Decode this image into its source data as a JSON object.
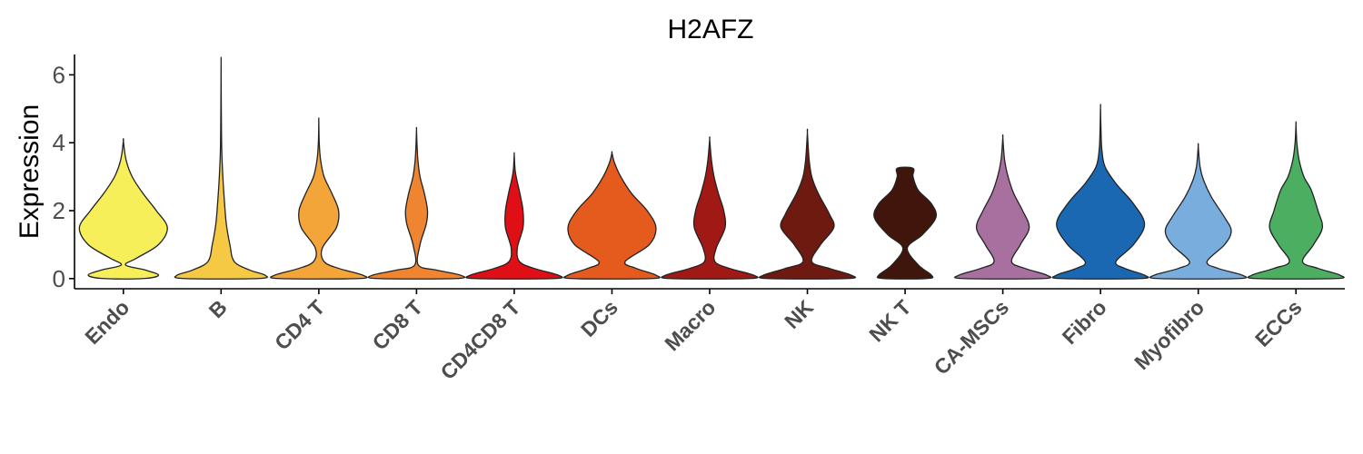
{
  "chart_data": {
    "type": "violin",
    "title": "H2AFZ",
    "xlabel": "",
    "ylabel": "Expression",
    "ylim": [
      -0.3,
      6.6
    ],
    "yticks": [
      0,
      2,
      4,
      6
    ],
    "grid": false,
    "legend": "none",
    "categories": [
      "Endo",
      "B",
      "CD4 T",
      "CD8 T",
      "CD4CD8 T",
      "DCs",
      "Macro",
      "NK",
      "NK T",
      "CA-MSCs",
      "Fibro",
      "Myofibro",
      "ECCs"
    ],
    "series": [
      {
        "category": "Endo",
        "color": "#F7EF5A",
        "min": 0,
        "max": 4.05,
        "profile": [
          [
            0,
            0.45
          ],
          [
            0.1,
            0.8
          ],
          [
            0.25,
            0.5
          ],
          [
            0.4,
            0.05
          ],
          [
            0.6,
            0.3
          ],
          [
            1.0,
            0.8
          ],
          [
            1.5,
            1.0
          ],
          [
            2.0,
            0.75
          ],
          [
            2.5,
            0.45
          ],
          [
            3.0,
            0.2
          ],
          [
            3.5,
            0.06
          ],
          [
            4.05,
            0.0
          ]
        ]
      },
      {
        "category": "B",
        "color": "#F6C945",
        "min": 0,
        "max": 6.35,
        "profile": [
          [
            0,
            0.85
          ],
          [
            0.1,
            1.0
          ],
          [
            0.25,
            0.65
          ],
          [
            0.5,
            0.3
          ],
          [
            1.0,
            0.2
          ],
          [
            1.6,
            0.12
          ],
          [
            2.2,
            0.08
          ],
          [
            3.0,
            0.04
          ],
          [
            3.8,
            0.015
          ],
          [
            5.0,
            0.005
          ],
          [
            6.35,
            0.0
          ]
        ]
      },
      {
        "category": "CD4 T",
        "color": "#F4A53A",
        "min": 0,
        "max": 4.65,
        "profile": [
          [
            0,
            0.9
          ],
          [
            0.1,
            1.0
          ],
          [
            0.3,
            0.45
          ],
          [
            0.5,
            0.12
          ],
          [
            0.9,
            0.08
          ],
          [
            1.5,
            0.4
          ],
          [
            2.0,
            0.45
          ],
          [
            2.5,
            0.3
          ],
          [
            3.0,
            0.12
          ],
          [
            3.5,
            0.04
          ],
          [
            4.0,
            0.01
          ],
          [
            4.65,
            0.0
          ]
        ]
      },
      {
        "category": "CD8 T",
        "color": "#EF8530",
        "min": 0,
        "max": 4.4,
        "profile": [
          [
            0,
            0.9
          ],
          [
            0.1,
            1.0
          ],
          [
            0.25,
            0.45
          ],
          [
            0.4,
            0.04
          ],
          [
            1.0,
            0.08
          ],
          [
            1.6,
            0.22
          ],
          [
            2.0,
            0.25
          ],
          [
            2.5,
            0.18
          ],
          [
            3.0,
            0.08
          ],
          [
            3.5,
            0.03
          ],
          [
            4.0,
            0.01
          ],
          [
            4.4,
            0.0
          ]
        ]
      },
      {
        "category": "CD4CD8 T",
        "color": "#E00F15",
        "min": 0,
        "max": 3.65,
        "profile": [
          [
            0,
            0.9
          ],
          [
            0.1,
            1.0
          ],
          [
            0.3,
            0.45
          ],
          [
            0.5,
            0.12
          ],
          [
            0.9,
            0.07
          ],
          [
            1.5,
            0.2
          ],
          [
            2.0,
            0.2
          ],
          [
            2.5,
            0.13
          ],
          [
            2.9,
            0.06
          ],
          [
            3.2,
            0.02
          ],
          [
            3.65,
            0.0
          ]
        ]
      },
      {
        "category": "DCs",
        "color": "#E55A1D",
        "min": 0,
        "max": 3.7,
        "profile": [
          [
            0,
            0.9
          ],
          [
            0.1,
            1.0
          ],
          [
            0.3,
            0.55
          ],
          [
            0.5,
            0.3
          ],
          [
            1.0,
            0.85
          ],
          [
            1.5,
            1.0
          ],
          [
            2.0,
            0.8
          ],
          [
            2.5,
            0.45
          ],
          [
            3.0,
            0.2
          ],
          [
            3.4,
            0.06
          ],
          [
            3.7,
            0.0
          ]
        ]
      },
      {
        "category": "Macro",
        "color": "#A01914",
        "min": 0,
        "max": 4.1,
        "profile": [
          [
            0,
            0.9
          ],
          [
            0.1,
            1.0
          ],
          [
            0.3,
            0.45
          ],
          [
            0.5,
            0.12
          ],
          [
            0.9,
            0.15
          ],
          [
            1.5,
            0.35
          ],
          [
            2.0,
            0.32
          ],
          [
            2.5,
            0.2
          ],
          [
            3.0,
            0.1
          ],
          [
            3.5,
            0.04
          ],
          [
            4.1,
            0.0
          ]
        ]
      },
      {
        "category": "NK",
        "color": "#6E1A10",
        "min": 0,
        "max": 4.3,
        "profile": [
          [
            0,
            0.9
          ],
          [
            0.1,
            1.0
          ],
          [
            0.3,
            0.5
          ],
          [
            0.5,
            0.1
          ],
          [
            1.0,
            0.3
          ],
          [
            1.5,
            0.6
          ],
          [
            1.9,
            0.5
          ],
          [
            2.5,
            0.25
          ],
          [
            3.0,
            0.1
          ],
          [
            3.5,
            0.04
          ],
          [
            4.3,
            0.0
          ]
        ]
      },
      {
        "category": "NK T",
        "color": "#40150B",
        "min": 0,
        "max": 3.25,
        "profile": [
          [
            0,
            0.5
          ],
          [
            0.1,
            0.6
          ],
          [
            0.4,
            0.3
          ],
          [
            0.9,
            0.05
          ],
          [
            1.3,
            0.4
          ],
          [
            1.8,
            0.7
          ],
          [
            2.2,
            0.6
          ],
          [
            2.6,
            0.3
          ],
          [
            3.0,
            0.18
          ],
          [
            3.25,
            0.18
          ]
        ]
      },
      {
        "category": "CA-MSCs",
        "color": "#A8709F",
        "min": 0,
        "max": 4.15,
        "profile": [
          [
            0,
            0.9
          ],
          [
            0.1,
            1.0
          ],
          [
            0.3,
            0.5
          ],
          [
            0.5,
            0.2
          ],
          [
            1.0,
            0.4
          ],
          [
            1.5,
            0.6
          ],
          [
            2.0,
            0.45
          ],
          [
            2.5,
            0.25
          ],
          [
            3.0,
            0.12
          ],
          [
            3.5,
            0.04
          ],
          [
            4.15,
            0.0
          ]
        ]
      },
      {
        "category": "Fibro",
        "color": "#1A67B2",
        "min": 0,
        "max": 5.05,
        "profile": [
          [
            0,
            0.9
          ],
          [
            0.1,
            1.0
          ],
          [
            0.3,
            0.55
          ],
          [
            0.5,
            0.35
          ],
          [
            1.0,
            0.75
          ],
          [
            1.6,
            1.0
          ],
          [
            2.2,
            0.75
          ],
          [
            2.8,
            0.35
          ],
          [
            3.3,
            0.1
          ],
          [
            3.8,
            0.03
          ],
          [
            4.4,
            0.01
          ],
          [
            5.05,
            0.0
          ]
        ]
      },
      {
        "category": "Myofibro",
        "color": "#79ADDE",
        "min": 0,
        "max": 3.9,
        "profile": [
          [
            0,
            0.9
          ],
          [
            0.1,
            1.0
          ],
          [
            0.3,
            0.45
          ],
          [
            0.5,
            0.2
          ],
          [
            1.0,
            0.6
          ],
          [
            1.4,
            0.75
          ],
          [
            1.8,
            0.6
          ],
          [
            2.4,
            0.3
          ],
          [
            2.9,
            0.12
          ],
          [
            3.3,
            0.04
          ],
          [
            3.9,
            0.0
          ]
        ]
      },
      {
        "category": "ECCs",
        "color": "#4BAE60",
        "min": 0,
        "max": 4.55,
        "profile": [
          [
            0,
            0.9
          ],
          [
            0.1,
            1.0
          ],
          [
            0.3,
            0.5
          ],
          [
            0.5,
            0.15
          ],
          [
            1.0,
            0.4
          ],
          [
            1.5,
            0.6
          ],
          [
            2.0,
            0.5
          ],
          [
            2.6,
            0.35
          ],
          [
            3.0,
            0.18
          ],
          [
            3.5,
            0.07
          ],
          [
            4.0,
            0.02
          ],
          [
            4.55,
            0.0
          ]
        ]
      }
    ]
  }
}
